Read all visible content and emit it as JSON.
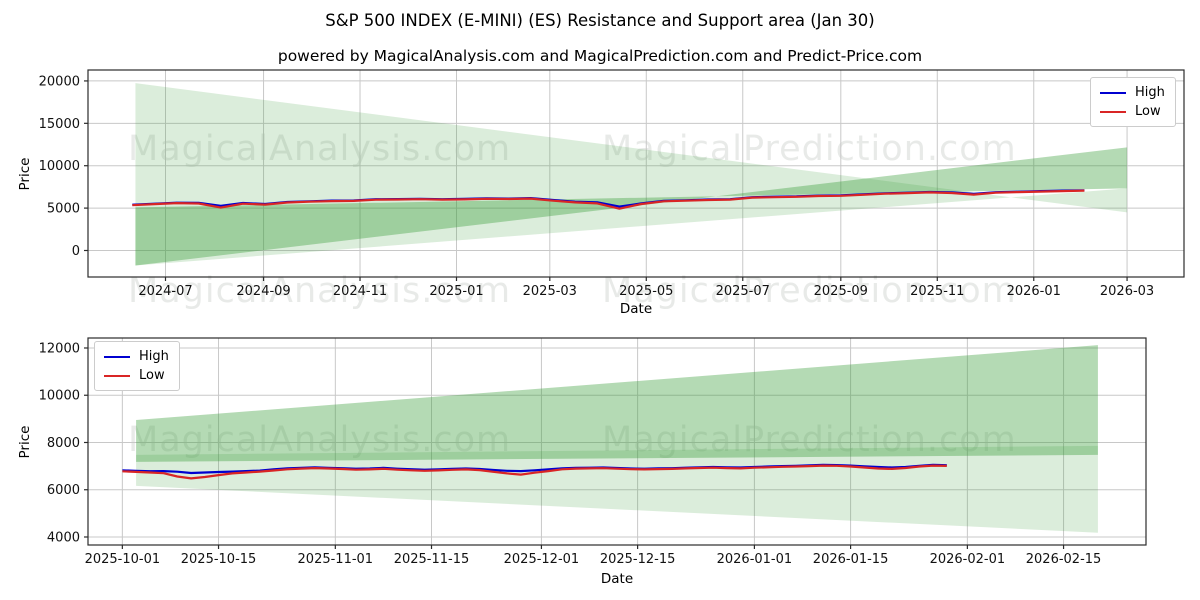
{
  "title": "S&P 500 INDEX (E-MINI) (ES) Resistance and Support area (Jan 30)",
  "subtitle": "powered by MagicalAnalysis.com and MagicalPrediction.com and Predict-Price.com",
  "watermark": {
    "left": "MagicalAnalysis.com",
    "right": "MagicalPrediction.com"
  },
  "legend": {
    "high_label": "High",
    "low_label": "Low"
  },
  "colors": {
    "high": "#0000d0",
    "low": "#d92525",
    "band_green": "#3a9d3a",
    "grid": "#c8c8c8",
    "spine": "#2b2b2b",
    "tick_text": "#111111"
  },
  "chart_data": [
    {
      "type": "line",
      "position": "top",
      "xlabel": "Date",
      "ylabel": "Price",
      "legend_position": "top-right",
      "legend_entries": [
        "High",
        "Low"
      ],
      "grid": true,
      "xlim": [
        "2024-05-13",
        "2026-04-06"
      ],
      "ylim": [
        -3127,
        21290
      ],
      "y_ticks": [
        0,
        5000,
        10000,
        15000,
        20000
      ],
      "x_ticks": [
        {
          "date": "2024-07-01",
          "label": "2024-07"
        },
        {
          "date": "2024-09-01",
          "label": "2024-09"
        },
        {
          "date": "2024-11-01",
          "label": "2024-11"
        },
        {
          "date": "2025-01-01",
          "label": "2025-01"
        },
        {
          "date": "2025-03-01",
          "label": "2025-03"
        },
        {
          "date": "2025-05-01",
          "label": "2025-05"
        },
        {
          "date": "2025-07-01",
          "label": "2025-07"
        },
        {
          "date": "2025-09-01",
          "label": "2025-09"
        },
        {
          "date": "2025-11-01",
          "label": "2025-11"
        },
        {
          "date": "2026-01-01",
          "label": "2026-01"
        },
        {
          "date": "2026-03-01",
          "label": "2026-03"
        }
      ],
      "series": {
        "start": "2024-06-10",
        "step_days": 14,
        "high": [
          5400,
          5520,
          5640,
          5620,
          5260,
          5600,
          5480,
          5720,
          5800,
          5880,
          5900,
          6050,
          6060,
          6100,
          6050,
          6080,
          6150,
          6120,
          6180,
          5950,
          5750,
          5680,
          5180,
          5560,
          5860,
          5920,
          6010,
          6050,
          6290,
          6340,
          6380,
          6480,
          6500,
          6620,
          6750,
          6820,
          6900,
          6850,
          6680,
          6870,
          6940,
          7000,
          7060,
          7100
        ],
        "low": [
          5340,
          5470,
          5590,
          5540,
          5060,
          5520,
          5410,
          5660,
          5750,
          5830,
          5850,
          5990,
          6010,
          6050,
          6000,
          6030,
          6100,
          6070,
          6120,
          5870,
          5670,
          5560,
          4930,
          5480,
          5800,
          5870,
          5960,
          6000,
          6240,
          6290,
          6330,
          6430,
          6450,
          6570,
          6700,
          6770,
          6850,
          6780,
          6590,
          6820,
          6890,
          6950,
          7010,
          7060
        ]
      },
      "bands": [
        {
          "name": "support-area",
          "x0": "2024-06-12",
          "x1": "2026-03-01",
          "line1": [
            19740,
            4490
          ],
          "line2": [
            -1770,
            7330
          ],
          "opacity": 0.18
        },
        {
          "name": "resistance-area",
          "x0": "2024-06-12",
          "x1": "2026-03-01",
          "line1": [
            5080,
            7330
          ],
          "line2": [
            -1770,
            12170
          ],
          "opacity": 0.38
        }
      ]
    },
    {
      "type": "line",
      "position": "bottom",
      "xlabel": "Date",
      "ylabel": "Price",
      "legend_position": "top-left",
      "legend_entries": [
        "High",
        "Low"
      ],
      "grid": true,
      "xlim": [
        "2025-09-26",
        "2026-02-27"
      ],
      "ylim": [
        3661,
        12423
      ],
      "y_ticks": [
        4000,
        6000,
        8000,
        10000,
        12000
      ],
      "x_ticks": [
        {
          "date": "2025-10-01",
          "label": "2025-10-01"
        },
        {
          "date": "2025-10-15",
          "label": "2025-10-15"
        },
        {
          "date": "2025-11-01",
          "label": "2025-11-01"
        },
        {
          "date": "2025-11-15",
          "label": "2025-11-15"
        },
        {
          "date": "2025-12-01",
          "label": "2025-12-01"
        },
        {
          "date": "2025-12-15",
          "label": "2025-12-15"
        },
        {
          "date": "2026-01-01",
          "label": "2026-01-01"
        },
        {
          "date": "2026-01-15",
          "label": "2026-01-15"
        },
        {
          "date": "2026-02-01",
          "label": "2026-02-01"
        },
        {
          "date": "2026-02-15",
          "label": "2026-02-15"
        }
      ],
      "series": {
        "start": "2025-10-01",
        "step_days": 2,
        "high": [
          6820,
          6800,
          6785,
          6790,
          6765,
          6710,
          6730,
          6750,
          6770,
          6790,
          6810,
          6860,
          6905,
          6925,
          6945,
          6930,
          6910,
          6890,
          6900,
          6925,
          6890,
          6870,
          6850,
          6862,
          6884,
          6900,
          6878,
          6835,
          6800,
          6788,
          6825,
          6865,
          6905,
          6925,
          6932,
          6942,
          6922,
          6900,
          6892,
          6902,
          6912,
          6932,
          6952,
          6962,
          6950,
          6940,
          6962,
          6982,
          7002,
          7012,
          7032,
          7052,
          7042,
          7022,
          6992,
          6962,
          6942,
          6962,
          7012,
          7052,
          7040
        ],
        "low": [
          6780,
          6755,
          6730,
          6700,
          6560,
          6480,
          6540,
          6620,
          6690,
          6730,
          6770,
          6815,
          6865,
          6895,
          6915,
          6900,
          6880,
          6850,
          6862,
          6885,
          6850,
          6825,
          6800,
          6820,
          6845,
          6862,
          6830,
          6760,
          6690,
          6640,
          6720,
          6790,
          6865,
          6895,
          6902,
          6912,
          6892,
          6868,
          6860,
          6872,
          6882,
          6902,
          6922,
          6932,
          6918,
          6902,
          6932,
          6952,
          6972,
          6982,
          7002,
          7022,
          7012,
          6982,
          6940,
          6900,
          6882,
          6922,
          6982,
          7022,
          7010
        ]
      },
      "bands": [
        {
          "name": "resistance-area",
          "x0": "2025-10-03",
          "x1": "2026-02-20",
          "line1": [
            8950,
            12120
          ],
          "line2": [
            7180,
            7475
          ],
          "opacity": 0.38
        },
        {
          "name": "support-area",
          "x0": "2025-10-03",
          "x1": "2026-02-20",
          "line1": [
            7475,
            7855
          ],
          "line2": [
            6165,
            4180
          ],
          "opacity": 0.18
        }
      ]
    }
  ]
}
